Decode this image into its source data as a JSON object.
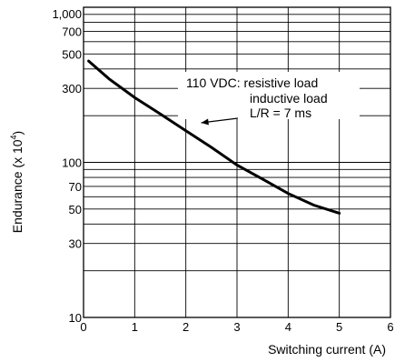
{
  "chart_data": {
    "type": "line",
    "xlabel": "Switching current (A)",
    "ylabel": "Endurance (x 10",
    "ylabel_exp": "4",
    "ylabel_close": ")",
    "xlim": [
      0,
      6
    ],
    "ylim": [
      10,
      1000
    ],
    "yscale": "log",
    "x_ticks": [
      {
        "value": 0,
        "label": "0"
      },
      {
        "value": 1,
        "label": "1"
      },
      {
        "value": 2,
        "label": "2"
      },
      {
        "value": 3,
        "label": "3"
      },
      {
        "value": 4,
        "label": "4"
      },
      {
        "value": 5,
        "label": "5"
      },
      {
        "value": 6,
        "label": "6"
      }
    ],
    "y_ticks": [
      {
        "value": 10,
        "label": "10"
      },
      {
        "value": 30,
        "label": "30"
      },
      {
        "value": 50,
        "label": "50"
      },
      {
        "value": 70,
        "label": "70"
      },
      {
        "value": 100,
        "label": "100"
      },
      {
        "value": 300,
        "label": "300"
      },
      {
        "value": 500,
        "label": "500"
      },
      {
        "value": 700,
        "label": "700"
      },
      {
        "value": 1000,
        "label": "1,000"
      }
    ],
    "y_gridlines": [
      20,
      30,
      40,
      50,
      60,
      70,
      80,
      90,
      100,
      200,
      300,
      400,
      500,
      600,
      700,
      800,
      900,
      1000
    ],
    "grid": true,
    "series": [
      {
        "x": [
          0.1,
          0.5,
          1.0,
          1.5,
          2.0,
          2.5,
          3.0,
          3.5,
          4.0,
          4.5,
          5.0
        ],
        "y": [
          450,
          345,
          262,
          205,
          160,
          125,
          96,
          78,
          63,
          53,
          47
        ]
      }
    ],
    "annotation": {
      "lines": [
        "110 VDC:   resistive load",
        "inductive load",
        "L/R = 7 ms"
      ],
      "arrow_to": {
        "x": 2.3,
        "y": 180
      }
    }
  }
}
